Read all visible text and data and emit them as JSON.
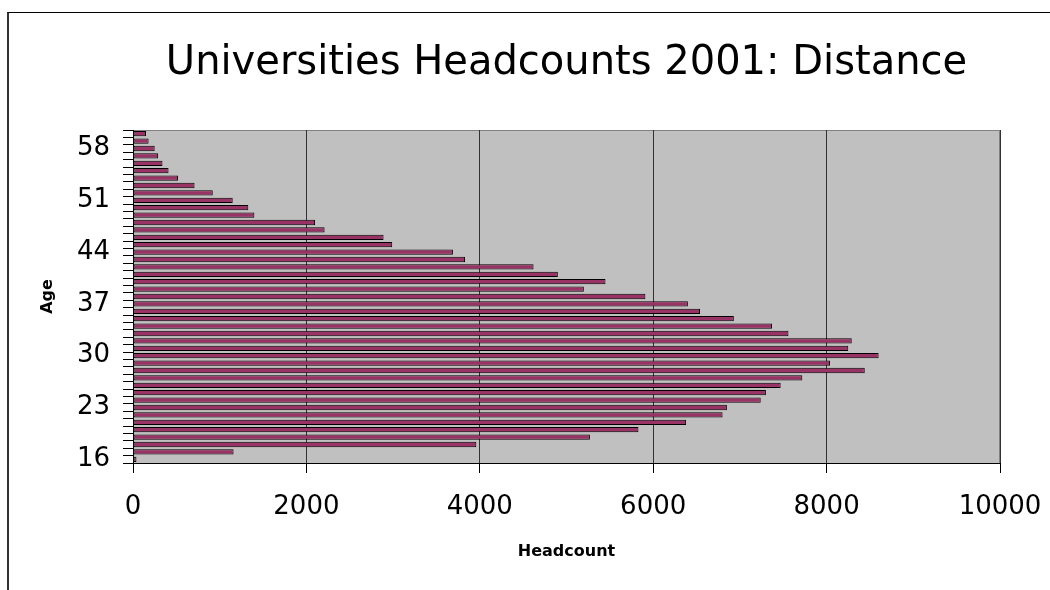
{
  "chart_data": {
    "type": "bar",
    "orientation": "horizontal",
    "title": "Universities Headcounts 2001: Distance",
    "xlabel": "Headcount",
    "ylabel": "Age",
    "categories": [
      null,
      null,
      "58",
      null,
      null,
      null,
      null,
      null,
      null,
      "51",
      null,
      null,
      null,
      null,
      null,
      null,
      "44",
      null,
      null,
      null,
      null,
      null,
      null,
      "37",
      null,
      null,
      null,
      null,
      null,
      null,
      "30",
      null,
      null,
      null,
      null,
      null,
      null,
      "23",
      null,
      null,
      null,
      null,
      null,
      null,
      "16"
    ],
    "values": [
      150,
      180,
      250,
      290,
      340,
      410,
      520,
      710,
      920,
      1150,
      1330,
      1400,
      2100,
      2210,
      2890,
      2990,
      3690,
      3830,
      4620,
      4900,
      5450,
      5200,
      5910,
      6400,
      6540,
      6930,
      7370,
      7560,
      8290,
      8250,
      8600,
      8040,
      8440,
      7720,
      7470,
      7300,
      7240,
      6850,
      6800,
      6380,
      5830,
      5270,
      3960,
      1160,
      40
    ],
    "color": "#993366",
    "xlim": [
      0,
      10000
    ],
    "xticks": [
      0,
      2000,
      4000,
      6000,
      8000,
      10000
    ],
    "grid": "x"
  }
}
